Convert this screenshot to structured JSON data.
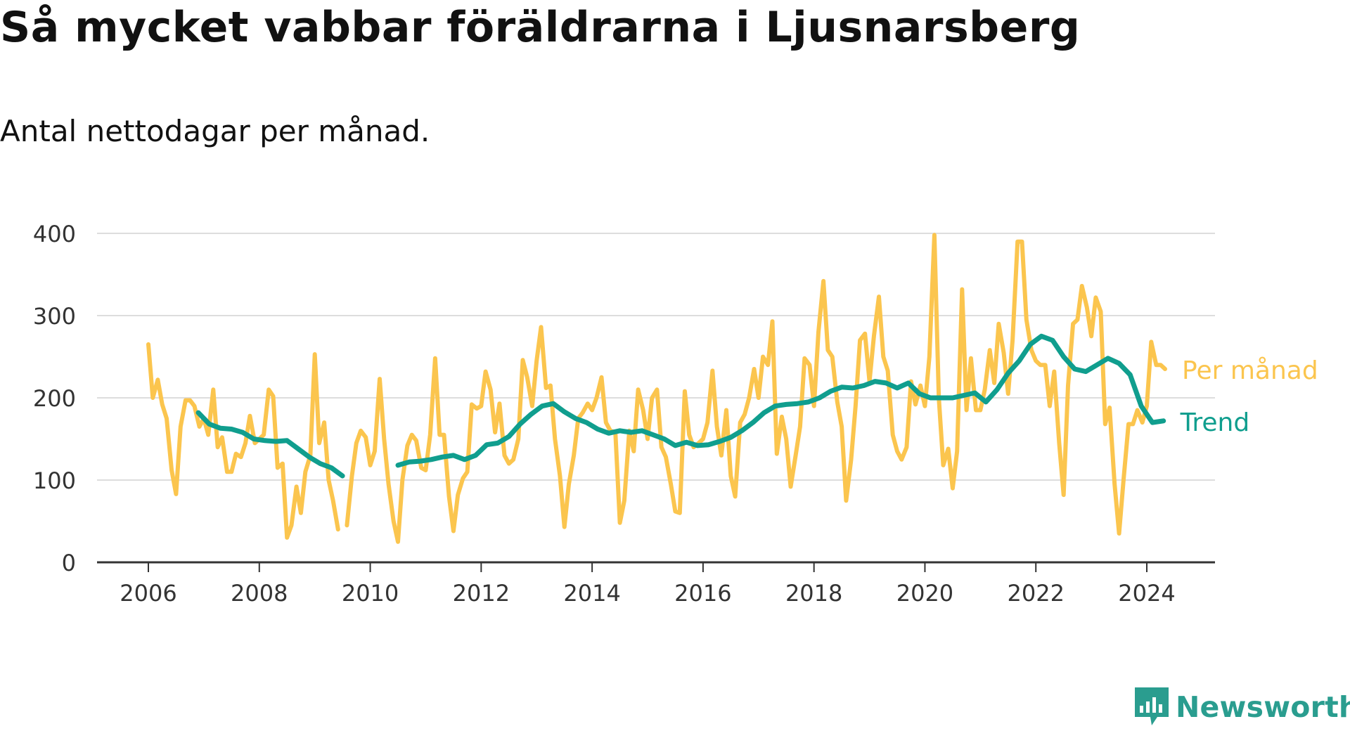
{
  "title": "Så mycket vabbar föräldrarna i Ljusnarsberg",
  "subtitle": "Antal nettodagar per månad.",
  "brand": {
    "name": "Newsworthy",
    "icon": "newsworthy-logo-icon",
    "color": "#2a9d8f"
  },
  "chart_data": {
    "type": "line",
    "xlim": [
      2006,
      2025
    ],
    "ylim": [
      0,
      400
    ],
    "x_ticks": [
      2006,
      2008,
      2010,
      2012,
      2014,
      2016,
      2018,
      2020,
      2022,
      2024
    ],
    "y_ticks": [
      0,
      100,
      200,
      300,
      400
    ],
    "grid": true,
    "series": [
      {
        "name": "Per månad",
        "color": "#fbc54e",
        "points": [
          [
            2006.0,
            265
          ],
          [
            2006.08,
            200
          ],
          [
            2006.17,
            222
          ],
          [
            2006.25,
            192
          ],
          [
            2006.33,
            175
          ],
          [
            2006.42,
            112
          ],
          [
            2006.5,
            83
          ],
          [
            2006.58,
            165
          ],
          [
            2006.67,
            197
          ],
          [
            2006.75,
            197
          ],
          [
            2006.83,
            190
          ],
          [
            2006.92,
            165
          ],
          [
            2007.0,
            175
          ],
          [
            2007.08,
            155
          ],
          [
            2007.17,
            210
          ],
          [
            2007.25,
            140
          ],
          [
            2007.33,
            152
          ],
          [
            2007.42,
            110
          ],
          [
            2007.5,
            110
          ],
          [
            2007.58,
            132
          ],
          [
            2007.67,
            128
          ],
          [
            2007.75,
            145
          ],
          [
            2007.83,
            178
          ],
          [
            2007.92,
            145
          ],
          [
            2008.0,
            150
          ],
          [
            2008.08,
            155
          ],
          [
            2008.17,
            210
          ],
          [
            2008.25,
            202
          ],
          [
            2008.33,
            115
          ],
          [
            2008.42,
            120
          ],
          [
            2008.5,
            30
          ],
          [
            2008.58,
            45
          ],
          [
            2008.67,
            92
          ],
          [
            2008.75,
            60
          ],
          [
            2008.83,
            110
          ],
          [
            2008.92,
            130
          ],
          [
            2009.0,
            253
          ],
          [
            2009.08,
            145
          ],
          [
            2009.17,
            170
          ],
          [
            2009.25,
            100
          ],
          [
            2009.33,
            75
          ],
          [
            2009.42,
            40
          ],
          [
            2009.58,
            45
          ],
          [
            2009.67,
            105
          ],
          [
            2009.75,
            145
          ],
          [
            2009.83,
            160
          ],
          [
            2009.92,
            152
          ],
          [
            2010.0,
            118
          ],
          [
            2010.08,
            135
          ],
          [
            2010.17,
            223
          ],
          [
            2010.25,
            150
          ],
          [
            2010.33,
            95
          ],
          [
            2010.42,
            50
          ],
          [
            2010.5,
            25
          ],
          [
            2010.58,
            100
          ],
          [
            2010.67,
            142
          ],
          [
            2010.75,
            155
          ],
          [
            2010.83,
            148
          ],
          [
            2010.92,
            115
          ],
          [
            2011.0,
            112
          ],
          [
            2011.08,
            155
          ],
          [
            2011.17,
            248
          ],
          [
            2011.25,
            155
          ],
          [
            2011.33,
            155
          ],
          [
            2011.42,
            80
          ],
          [
            2011.5,
            38
          ],
          [
            2011.58,
            82
          ],
          [
            2011.67,
            102
          ],
          [
            2011.75,
            110
          ],
          [
            2011.83,
            192
          ],
          [
            2011.92,
            187
          ],
          [
            2012.0,
            190
          ],
          [
            2012.08,
            232
          ],
          [
            2012.17,
            210
          ],
          [
            2012.25,
            158
          ],
          [
            2012.33,
            193
          ],
          [
            2012.42,
            130
          ],
          [
            2012.5,
            120
          ],
          [
            2012.58,
            125
          ],
          [
            2012.67,
            150
          ],
          [
            2012.75,
            246
          ],
          [
            2012.83,
            225
          ],
          [
            2012.92,
            190
          ],
          [
            2013.0,
            245
          ],
          [
            2013.08,
            286
          ],
          [
            2013.17,
            212
          ],
          [
            2013.25,
            215
          ],
          [
            2013.33,
            150
          ],
          [
            2013.42,
            105
          ],
          [
            2013.5,
            43
          ],
          [
            2013.58,
            95
          ],
          [
            2013.67,
            130
          ],
          [
            2013.75,
            175
          ],
          [
            2013.83,
            182
          ],
          [
            2013.92,
            193
          ],
          [
            2014.0,
            185
          ],
          [
            2014.08,
            200
          ],
          [
            2014.17,
            225
          ],
          [
            2014.25,
            170
          ],
          [
            2014.33,
            160
          ],
          [
            2014.42,
            158
          ],
          [
            2014.5,
            48
          ],
          [
            2014.58,
            75
          ],
          [
            2014.67,
            160
          ],
          [
            2014.75,
            135
          ],
          [
            2014.83,
            210
          ],
          [
            2014.92,
            185
          ],
          [
            2015.0,
            150
          ],
          [
            2015.08,
            200
          ],
          [
            2015.17,
            210
          ],
          [
            2015.25,
            140
          ],
          [
            2015.33,
            128
          ],
          [
            2015.42,
            95
          ],
          [
            2015.5,
            62
          ],
          [
            2015.58,
            60
          ],
          [
            2015.67,
            208
          ],
          [
            2015.75,
            155
          ],
          [
            2015.83,
            140
          ],
          [
            2015.92,
            145
          ],
          [
            2016.0,
            150
          ],
          [
            2016.08,
            170
          ],
          [
            2016.17,
            233
          ],
          [
            2016.25,
            165
          ],
          [
            2016.33,
            130
          ],
          [
            2016.42,
            185
          ],
          [
            2016.5,
            105
          ],
          [
            2016.58,
            80
          ],
          [
            2016.67,
            170
          ],
          [
            2016.75,
            180
          ],
          [
            2016.83,
            200
          ],
          [
            2016.92,
            235
          ],
          [
            2017.0,
            200
          ],
          [
            2017.08,
            250
          ],
          [
            2017.17,
            240
          ],
          [
            2017.25,
            293
          ],
          [
            2017.33,
            132
          ],
          [
            2017.42,
            177
          ],
          [
            2017.5,
            150
          ],
          [
            2017.58,
            92
          ],
          [
            2017.67,
            130
          ],
          [
            2017.75,
            165
          ],
          [
            2017.83,
            248
          ],
          [
            2017.92,
            240
          ],
          [
            2018.0,
            190
          ],
          [
            2018.08,
            280
          ],
          [
            2018.17,
            342
          ],
          [
            2018.25,
            258
          ],
          [
            2018.33,
            250
          ],
          [
            2018.42,
            195
          ],
          [
            2018.5,
            165
          ],
          [
            2018.58,
            75
          ],
          [
            2018.67,
            125
          ],
          [
            2018.75,
            190
          ],
          [
            2018.83,
            270
          ],
          [
            2018.92,
            278
          ],
          [
            2019.0,
            220
          ],
          [
            2019.08,
            275
          ],
          [
            2019.17,
            323
          ],
          [
            2019.25,
            250
          ],
          [
            2019.33,
            233
          ],
          [
            2019.42,
            155
          ],
          [
            2019.5,
            135
          ],
          [
            2019.58,
            125
          ],
          [
            2019.67,
            140
          ],
          [
            2019.75,
            220
          ],
          [
            2019.83,
            192
          ],
          [
            2019.92,
            215
          ],
          [
            2020.0,
            190
          ],
          [
            2020.08,
            250
          ],
          [
            2020.17,
            398
          ],
          [
            2020.25,
            200
          ],
          [
            2020.33,
            118
          ],
          [
            2020.42,
            138
          ],
          [
            2020.5,
            90
          ],
          [
            2020.58,
            135
          ],
          [
            2020.67,
            332
          ],
          [
            2020.75,
            185
          ],
          [
            2020.83,
            248
          ],
          [
            2020.92,
            185
          ],
          [
            2021.0,
            185
          ],
          [
            2021.08,
            210
          ],
          [
            2021.17,
            258
          ],
          [
            2021.25,
            218
          ],
          [
            2021.33,
            290
          ],
          [
            2021.42,
            255
          ],
          [
            2021.5,
            205
          ],
          [
            2021.58,
            270
          ],
          [
            2021.67,
            390
          ],
          [
            2021.75,
            390
          ],
          [
            2021.83,
            295
          ],
          [
            2021.92,
            258
          ],
          [
            2022.0,
            245
          ],
          [
            2022.08,
            240
          ],
          [
            2022.17,
            240
          ],
          [
            2022.25,
            190
          ],
          [
            2022.33,
            232
          ],
          [
            2022.42,
            145
          ],
          [
            2022.5,
            82
          ],
          [
            2022.58,
            215
          ],
          [
            2022.67,
            290
          ],
          [
            2022.75,
            295
          ],
          [
            2022.83,
            336
          ],
          [
            2022.92,
            310
          ],
          [
            2023.0,
            275
          ],
          [
            2023.08,
            322
          ],
          [
            2023.17,
            305
          ],
          [
            2023.25,
            168
          ],
          [
            2023.33,
            188
          ],
          [
            2023.42,
            95
          ],
          [
            2023.5,
            35
          ],
          [
            2023.58,
            100
          ],
          [
            2023.67,
            168
          ],
          [
            2023.75,
            168
          ],
          [
            2023.83,
            185
          ],
          [
            2023.92,
            170
          ],
          [
            2024.0,
            190
          ],
          [
            2024.08,
            268
          ],
          [
            2024.17,
            240
          ],
          [
            2024.25,
            240
          ],
          [
            2024.33,
            235
          ]
        ]
      },
      {
        "name": "Trend",
        "color": "#109e8e",
        "points": [
          [
            2006.9,
            182
          ],
          [
            2007.1,
            168
          ],
          [
            2007.3,
            163
          ],
          [
            2007.5,
            162
          ],
          [
            2007.7,
            158
          ],
          [
            2007.9,
            150
          ],
          [
            2008.1,
            148
          ],
          [
            2008.3,
            147
          ],
          [
            2008.5,
            148
          ],
          [
            2008.7,
            138
          ],
          [
            2008.9,
            128
          ],
          [
            2009.1,
            120
          ],
          [
            2009.3,
            115
          ],
          [
            2009.5,
            105
          ],
          [
            2010.5,
            118
          ],
          [
            2010.7,
            122
          ],
          [
            2010.9,
            123
          ],
          [
            2011.1,
            125
          ],
          [
            2011.3,
            128
          ],
          [
            2011.5,
            130
          ],
          [
            2011.7,
            125
          ],
          [
            2011.9,
            130
          ],
          [
            2012.1,
            143
          ],
          [
            2012.3,
            145
          ],
          [
            2012.5,
            153
          ],
          [
            2012.7,
            168
          ],
          [
            2012.9,
            180
          ],
          [
            2013.1,
            190
          ],
          [
            2013.3,
            193
          ],
          [
            2013.5,
            183
          ],
          [
            2013.7,
            175
          ],
          [
            2013.9,
            170
          ],
          [
            2014.1,
            162
          ],
          [
            2014.3,
            157
          ],
          [
            2014.5,
            160
          ],
          [
            2014.7,
            158
          ],
          [
            2014.9,
            160
          ],
          [
            2015.1,
            155
          ],
          [
            2015.3,
            150
          ],
          [
            2015.5,
            142
          ],
          [
            2015.7,
            146
          ],
          [
            2015.9,
            142
          ],
          [
            2016.1,
            143
          ],
          [
            2016.3,
            147
          ],
          [
            2016.5,
            152
          ],
          [
            2016.7,
            160
          ],
          [
            2016.9,
            170
          ],
          [
            2017.1,
            182
          ],
          [
            2017.3,
            190
          ],
          [
            2017.5,
            192
          ],
          [
            2017.7,
            193
          ],
          [
            2017.9,
            195
          ],
          [
            2018.1,
            200
          ],
          [
            2018.3,
            208
          ],
          [
            2018.5,
            213
          ],
          [
            2018.7,
            212
          ],
          [
            2018.9,
            215
          ],
          [
            2019.1,
            220
          ],
          [
            2019.3,
            218
          ],
          [
            2019.5,
            212
          ],
          [
            2019.7,
            218
          ],
          [
            2019.9,
            205
          ],
          [
            2020.1,
            200
          ],
          [
            2020.3,
            200
          ],
          [
            2020.5,
            200
          ],
          [
            2020.7,
            203
          ],
          [
            2020.9,
            206
          ],
          [
            2021.1,
            195
          ],
          [
            2021.3,
            210
          ],
          [
            2021.5,
            230
          ],
          [
            2021.7,
            245
          ],
          [
            2021.9,
            265
          ],
          [
            2022.1,
            275
          ],
          [
            2022.3,
            270
          ],
          [
            2022.5,
            250
          ],
          [
            2022.7,
            235
          ],
          [
            2022.9,
            232
          ],
          [
            2023.1,
            240
          ],
          [
            2023.3,
            248
          ],
          [
            2023.5,
            242
          ],
          [
            2023.7,
            228
          ],
          [
            2023.9,
            190
          ],
          [
            2024.1,
            170
          ],
          [
            2024.3,
            172
          ]
        ]
      }
    ]
  }
}
